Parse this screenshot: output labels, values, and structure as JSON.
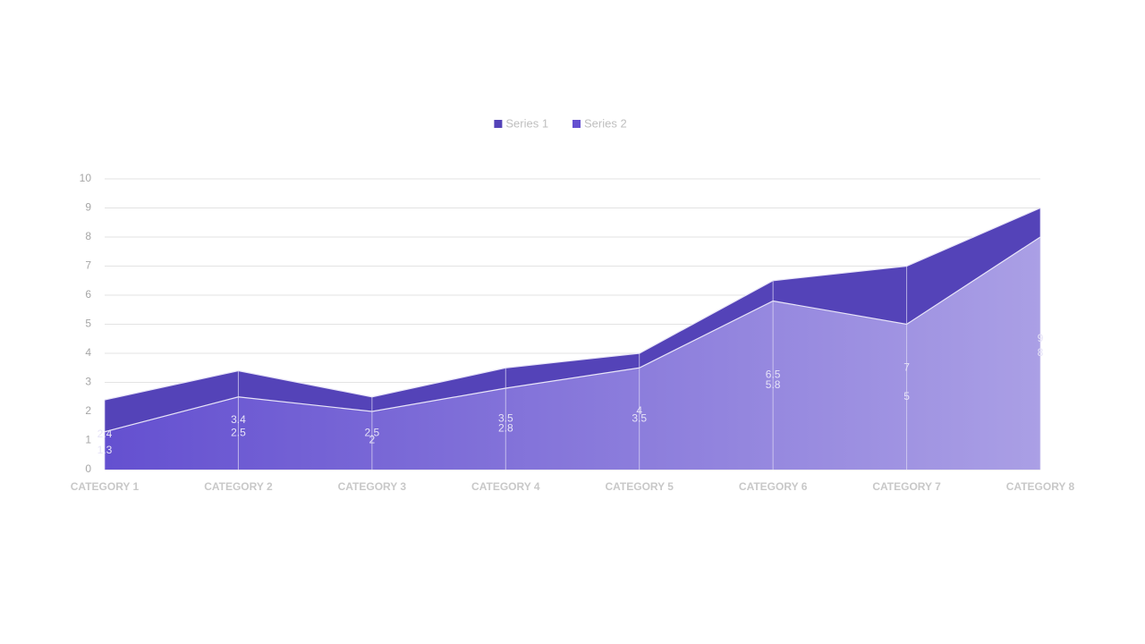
{
  "chart_data": {
    "type": "area",
    "categories": [
      "CATEGORY 1",
      "CATEGORY 2",
      "CATEGORY 3",
      "CATEGORY 4",
      "CATEGORY 5",
      "CATEGORY 6",
      "CATEGORY 7",
      "CATEGORY 8"
    ],
    "series": [
      {
        "name": "Series 1",
        "color": "#5443b8",
        "values": [
          2.4,
          3.4,
          2.5,
          3.5,
          4,
          6.5,
          7,
          9
        ]
      },
      {
        "name": "Series 2",
        "color": "#6450d0",
        "values": [
          1.3,
          2.5,
          2,
          2.8,
          3.5,
          5.8,
          5,
          8
        ]
      }
    ],
    "ylim": [
      0,
      10
    ],
    "yticks": [
      0,
      1,
      2,
      3,
      4,
      5,
      6,
      7,
      8,
      9,
      10
    ],
    "grid": true,
    "legend": "top"
  }
}
